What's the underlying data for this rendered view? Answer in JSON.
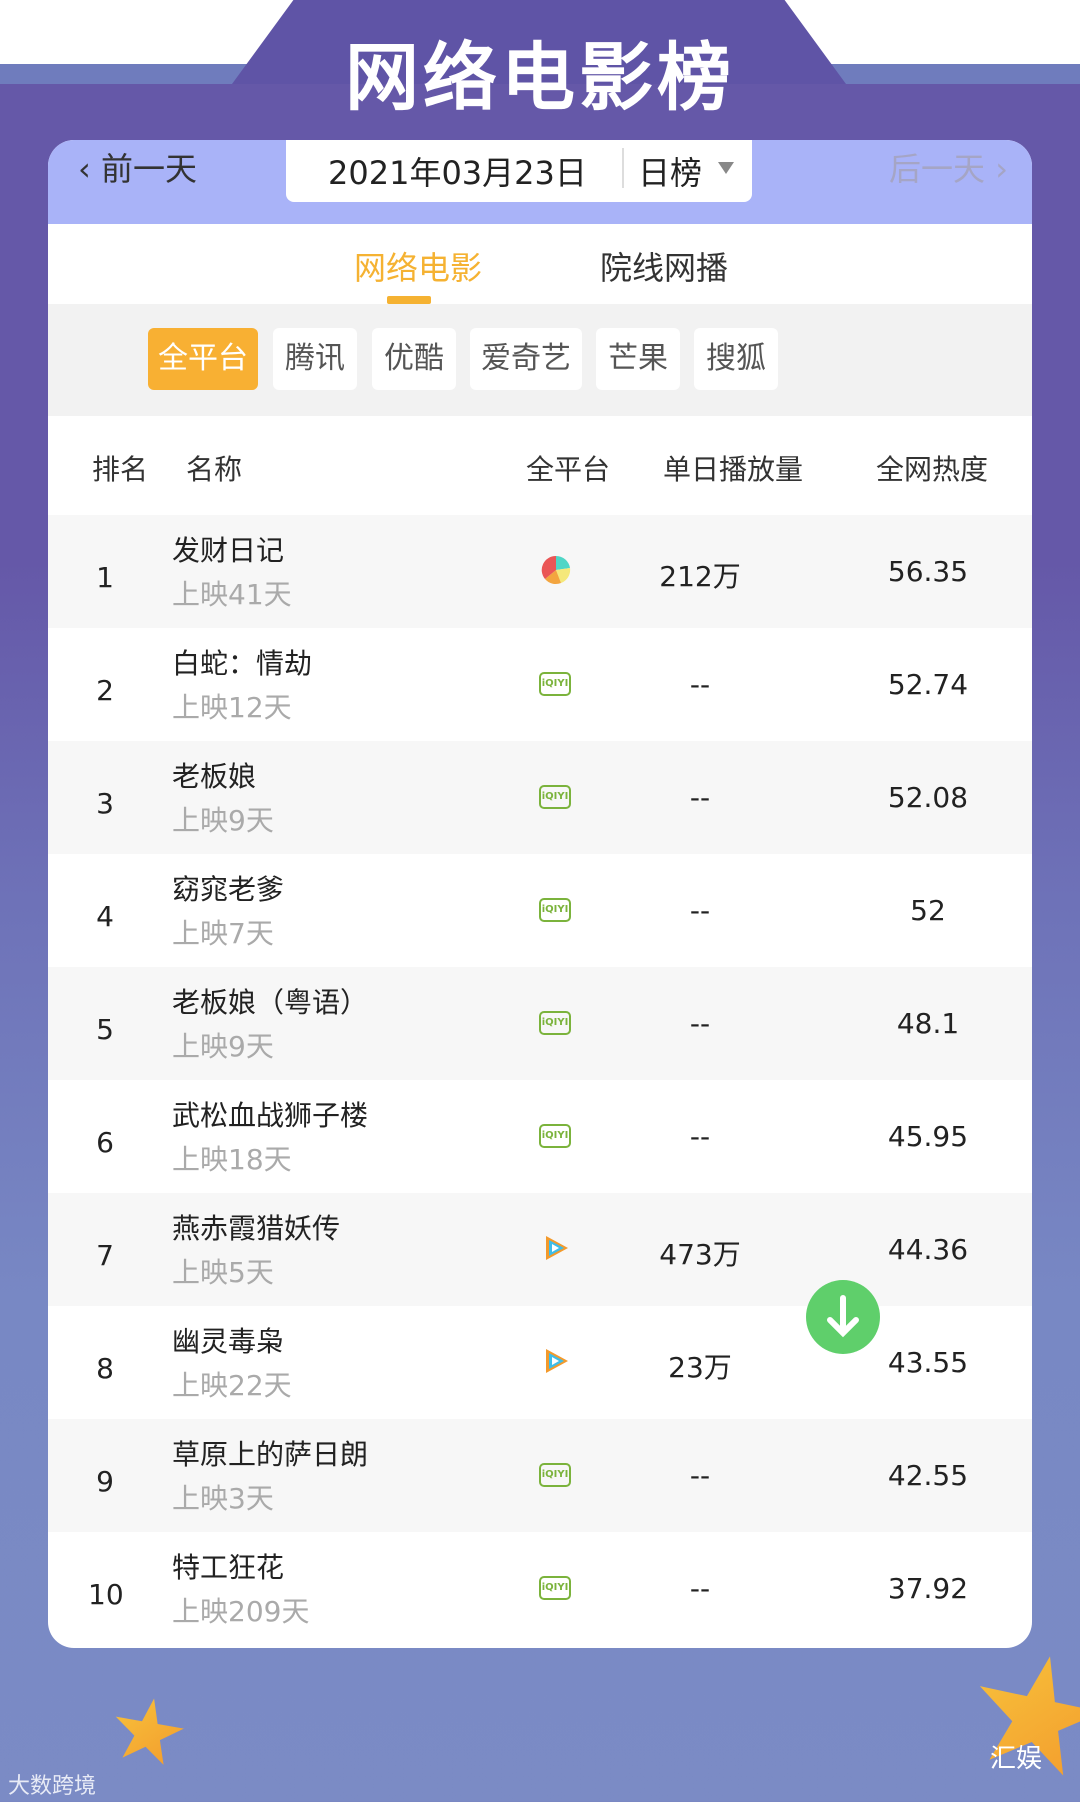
{
  "header": {
    "title": "网络电影榜"
  },
  "datebar": {
    "prev": "‹ 前一天",
    "date": "2021年03月23日",
    "rank_type": "日榜",
    "next": "后一天 ›"
  },
  "tabs": [
    {
      "label": "网络电影",
      "active": true
    },
    {
      "label": "院线网播",
      "active": false
    }
  ],
  "filters": [
    {
      "label": "全平台",
      "active": true
    },
    {
      "label": "腾讯"
    },
    {
      "label": "优酷"
    },
    {
      "label": "爱奇艺"
    },
    {
      "label": "芒果"
    },
    {
      "label": "搜狐"
    }
  ],
  "columns": [
    "排名",
    "名称",
    "全平台",
    "单日播放量",
    "全网热度"
  ],
  "rows": [
    {
      "rank": "1",
      "name": "发财日记",
      "days": "上映41天",
      "platform": "multi-platform-icon",
      "plays": "212万",
      "heat": "56.35"
    },
    {
      "rank": "2",
      "name": "白蛇：情劫",
      "days": "上映12天",
      "platform": "iqiyi-icon",
      "plays": "--",
      "heat": "52.74"
    },
    {
      "rank": "3",
      "name": "老板娘",
      "days": "上映9天",
      "platform": "iqiyi-icon",
      "plays": "--",
      "heat": "52.08"
    },
    {
      "rank": "4",
      "name": "窈窕老爹",
      "days": "上映7天",
      "platform": "iqiyi-icon",
      "plays": "--",
      "heat": "52"
    },
    {
      "rank": "5",
      "name": "老板娘（粤语）",
      "days": "上映9天",
      "platform": "iqiyi-icon",
      "plays": "--",
      "heat": "48.1"
    },
    {
      "rank": "6",
      "name": "武松血战狮子楼",
      "days": "上映18天",
      "platform": "iqiyi-icon",
      "plays": "--",
      "heat": "45.95"
    },
    {
      "rank": "7",
      "name": "燕赤霞猎妖传",
      "days": "上映5天",
      "platform": "tencent-video-icon",
      "plays": "473万",
      "heat": "44.36"
    },
    {
      "rank": "8",
      "name": "幽灵毒枭",
      "days": "上映22天",
      "platform": "tencent-video-icon",
      "plays": "23万",
      "heat": "43.55"
    },
    {
      "rank": "9",
      "name": "草原上的萨日朗",
      "days": "上映3天",
      "platform": "iqiyi-icon",
      "plays": "--",
      "heat": "42.55"
    },
    {
      "rank": "10",
      "name": "特工狂花",
      "days": "上映209天",
      "platform": "iqiyi-icon",
      "plays": "--",
      "heat": "37.92"
    }
  ],
  "iqiyi_text": "iQIYI",
  "watermarks": {
    "left": "大数跨境",
    "right": "汇娱"
  },
  "colors": {
    "accent": "#f8b033",
    "purple": "#6558a8",
    "iqiyi": "#7bb33c",
    "download": "#5fcf6b"
  }
}
